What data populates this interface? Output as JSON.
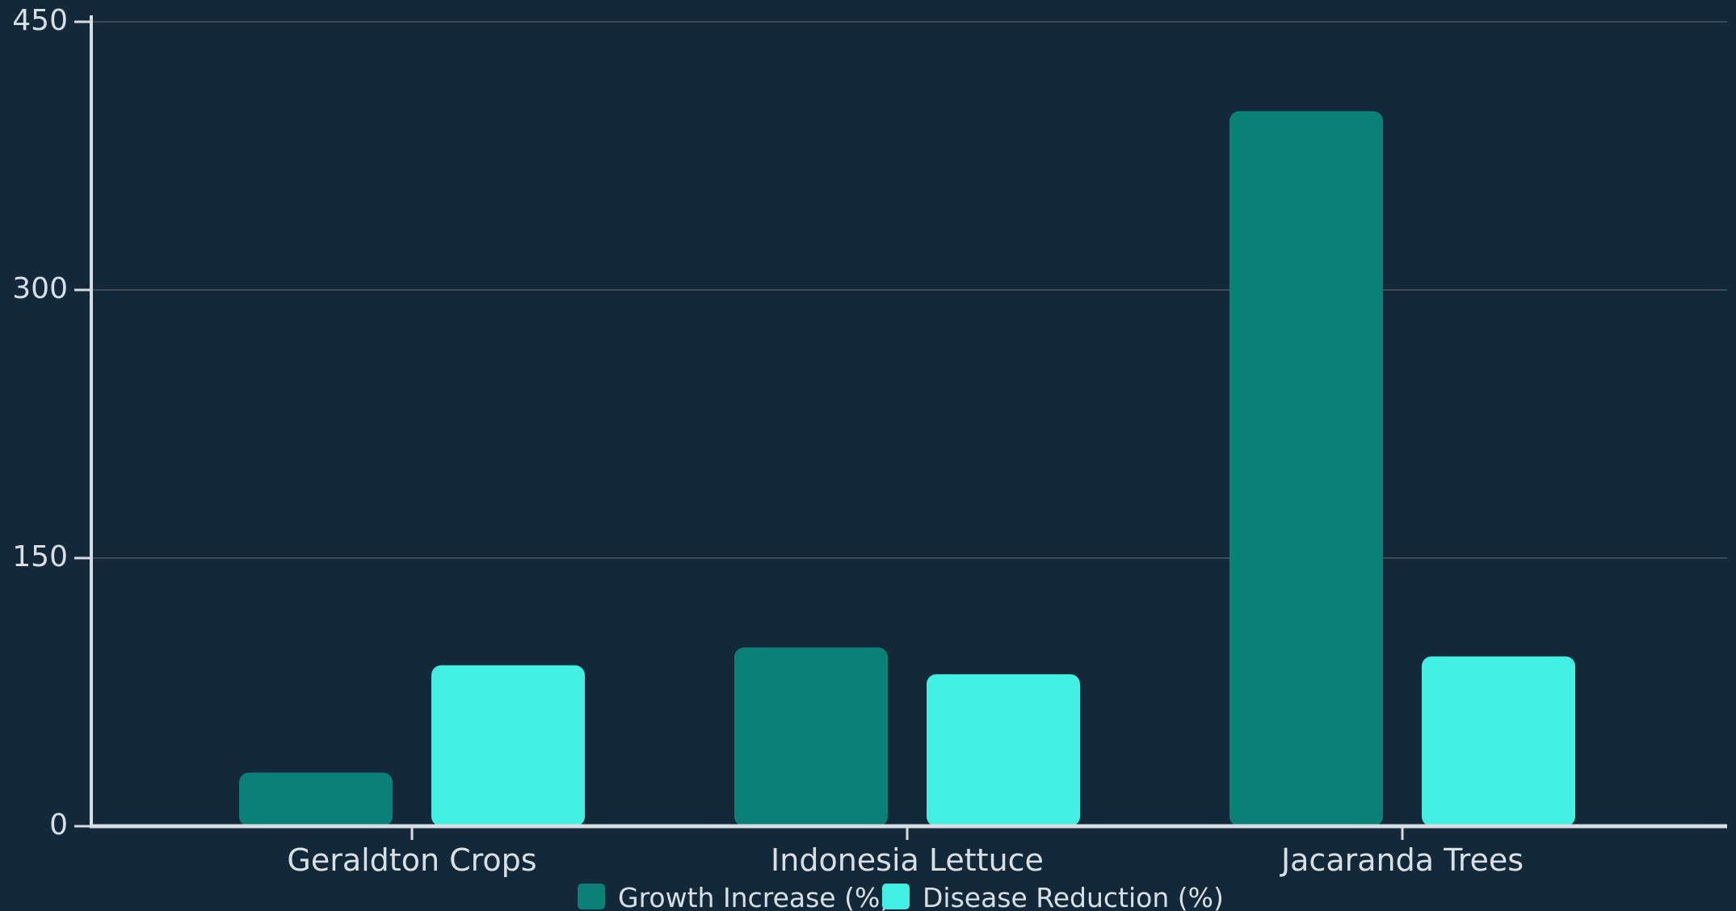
{
  "chart_data": {
    "type": "bar",
    "title": "",
    "xlabel": "",
    "ylabel": "",
    "categories": [
      "Geraldton Crops",
      "Indonesia Lettuce",
      "Jacaranda Trees"
    ],
    "series": [
      {
        "name": "Growth Increase (%)",
        "values": [
          30,
          100,
          400
        ],
        "color": "#0b8077"
      },
      {
        "name": "Disease Reduction (%)",
        "values": [
          90,
          85,
          95
        ],
        "color": "#43efe3"
      }
    ],
    "yticks": [
      0,
      150,
      300,
      450
    ],
    "ylim": [
      0,
      450
    ],
    "grid": true,
    "legend": "bottom-center"
  },
  "colors": {
    "background": "#132838",
    "axis": "#d6dde3",
    "grid": "#3b4b57",
    "text": "#d8e0e6"
  }
}
